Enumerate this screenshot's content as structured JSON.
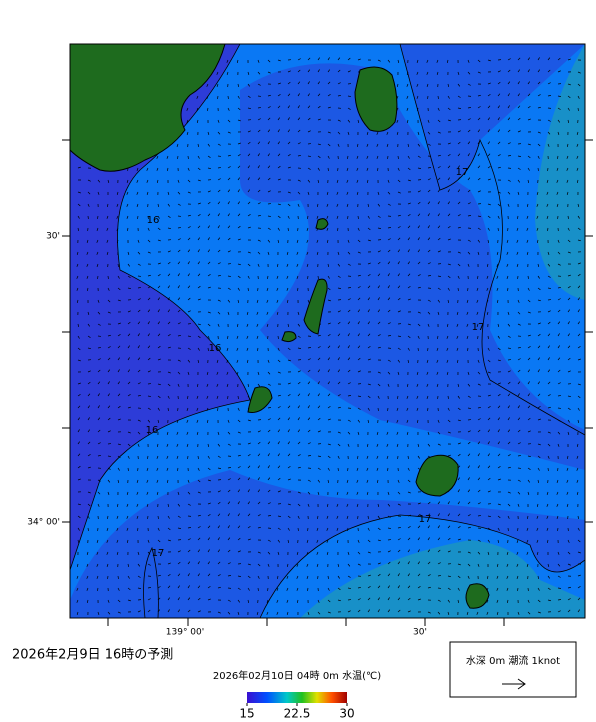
{
  "map": {
    "y_labels": [
      "30'",
      "34° 00'"
    ],
    "x_labels": [
      "139° 00'",
      "30'"
    ],
    "contour_labels": [
      "16",
      "17",
      "17",
      "16",
      "16",
      "17",
      "17"
    ]
  },
  "caption": "2026年2月9日 16時の予測",
  "colorbar": {
    "title": "2026年02月10日 04時 0m 水温(℃)",
    "ticks": [
      15,
      22.5,
      30
    ]
  },
  "legend": {
    "text": "水深 0m 潮流 1knot"
  }
}
